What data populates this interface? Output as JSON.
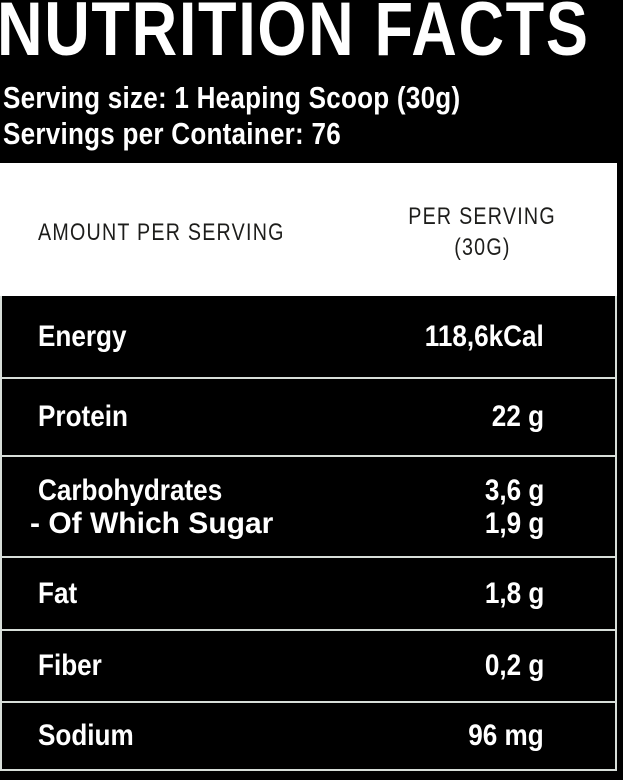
{
  "header": {
    "title": "NUTRITION FACTS",
    "serving_size_line": "Serving size: 1 Heaping Scoop (30g)",
    "servings_per_container_line": "Servings per Container: 76"
  },
  "columns": {
    "amount_header": "AMOUNT PER SERVING",
    "per_serving_line1": "PER SERVING",
    "per_serving_line2": "(30G)"
  },
  "rows": [
    {
      "label": "Energy",
      "value": "118,6kCal"
    },
    {
      "label": "Protein",
      "value": "22 g"
    },
    {
      "label": "Carbohydrates",
      "value": "3,6 g",
      "sub_label": "- Of Which Sugar",
      "sub_value": "1,9 g"
    },
    {
      "label": "Fat",
      "value": "1,8 g"
    },
    {
      "label": "Fiber",
      "value": "0,2 g"
    },
    {
      "label": "Sodium",
      "value": "96 mg"
    }
  ],
  "colors": {
    "background": "#000000",
    "text_light": "#ffffff",
    "panel": "#ffffff",
    "text_dark": "#1d1d1b",
    "separator": "#d7ded9"
  }
}
